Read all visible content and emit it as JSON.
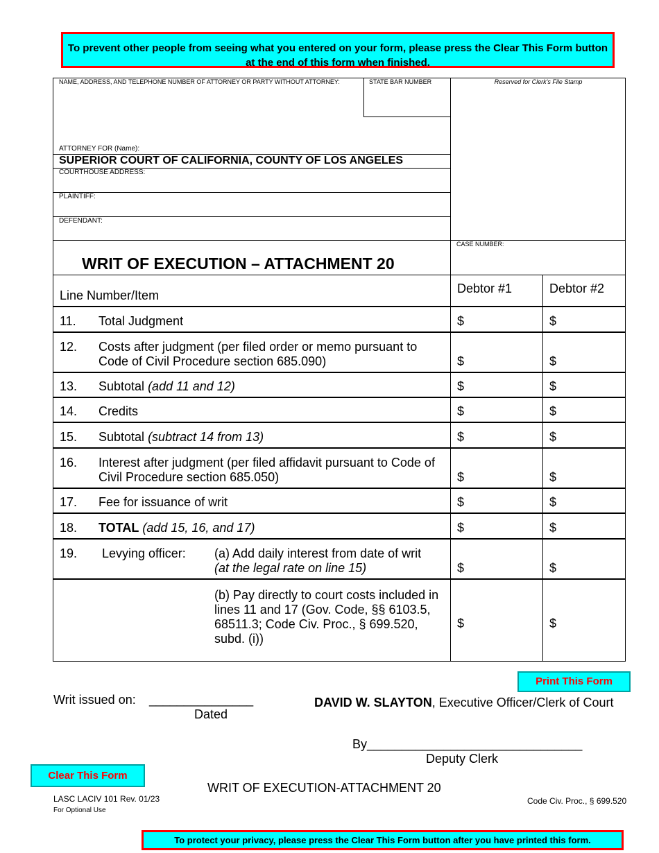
{
  "top_notice": "To prevent other people from seeing what you entered on your form, please press the Clear This Form button at the end of this form when finished.",
  "header": {
    "attorney_label": "NAME, ADDRESS, AND TELEPHONE NUMBER OF ATTORNEY OR PARTY WITHOUT ATTORNEY:",
    "state_bar_label": "STATE BAR NUMBER",
    "clerk_stamp_label": "Reserved for Clerk's File Stamp",
    "attorney_for_label": "ATTORNEY FOR (Name):",
    "court_name": "SUPERIOR COURT OF CALIFORNIA, COUNTY OF LOS ANGELES",
    "courthouse_label": "COURTHOUSE ADDRESS:",
    "plaintiff_label": "PLAINTIFF:",
    "defendant_label": "DEFENDANT:",
    "case_number_label": "CASE NUMBER:",
    "title": "WRIT OF EXECUTION – ATTACHMENT 20"
  },
  "table": {
    "col_item": "Line Number/Item",
    "col_debtor1": "Debtor #1",
    "col_debtor2": "Debtor #2",
    "currency": "$",
    "rows": [
      {
        "num": "11.",
        "text": "Total Judgment",
        "italic": ""
      },
      {
        "num": "12.",
        "text": "Costs after judgment (per filed order or memo pursuant to Code of Civil Procedure section 685.090)",
        "italic": ""
      },
      {
        "num": "13.",
        "text": "Subtotal ",
        "italic": "(add 11 and 12)"
      },
      {
        "num": "14.",
        "text": "Credits",
        "italic": ""
      },
      {
        "num": "15.",
        "text": "Subtotal ",
        "italic": "(subtract 14 from 13)"
      },
      {
        "num": "16.",
        "text": "Interest after judgment (per filed affidavit pursuant to Code of Civil Procedure section 685.050)",
        "italic": ""
      },
      {
        "num": "17.",
        "text": "Fee for issuance of writ",
        "italic": ""
      },
      {
        "num": "18.",
        "bold": "TOTAL",
        "italic": " (add 15, 16, and 17)"
      },
      {
        "num": "19.",
        "label": "Levying officer:",
        "text": "(a) Add daily interest from date of writ",
        "italic": "(at the legal rate on line 15)"
      },
      {
        "text": "(b) Pay directly to court costs included in lines 11 and 17 (Gov. Code, §§ 6103.5, 68511.3; Code Civ. Proc., § 699.520, subd. (i))"
      }
    ]
  },
  "footer": {
    "print_button": "Print This Form",
    "clear_button": "Clear This Form",
    "writ_issued_label": "Writ issued on:",
    "date_blank": "_______________",
    "dated_label": "Dated",
    "clerk_name": "DAVID W. SLAYTON",
    "clerk_title": ", Executive Officer/Clerk of Court",
    "by_line": "By_______________________________",
    "deputy_label": "Deputy Clerk",
    "form_title": "WRIT OF EXECUTION-ATTACHMENT 20",
    "form_id": "LASC LACIV 101 Rev. 01/23",
    "optional_use": "For Optional Use",
    "code_ref": "Code Civ. Proc., § 699.520",
    "bottom_notice": "To protect your privacy, please press the Clear This Form button after you have printed this form."
  },
  "colors": {
    "notice_bg": "#00ffff",
    "notice_border": "#ff0000",
    "button_text": "#ff0000"
  }
}
